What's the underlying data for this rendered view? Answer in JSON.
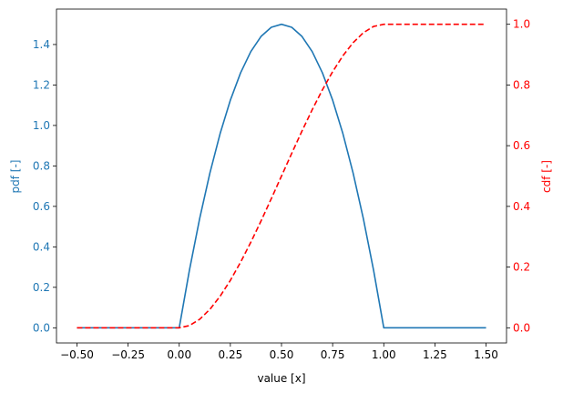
{
  "chart_data": {
    "type": "line",
    "xlabel": "value [x]",
    "ylabel_left": "pdf [-]",
    "ylabel_right": "cdf [-]",
    "xlim": [
      -0.6,
      1.6
    ],
    "ylim_left": [
      -0.075,
      1.575
    ],
    "ylim_right": [
      -0.05,
      1.05
    ],
    "xticks": [
      "−0.50",
      "−0.25",
      "0.00",
      "0.25",
      "0.50",
      "0.75",
      "1.00",
      "1.25",
      "1.50"
    ],
    "xtick_values": [
      -0.5,
      -0.25,
      0.0,
      0.25,
      0.5,
      0.75,
      1.0,
      1.25,
      1.5
    ],
    "yticks_left": [
      "0.0",
      "0.2",
      "0.4",
      "0.6",
      "0.8",
      "1.0",
      "1.2",
      "1.4"
    ],
    "ytick_values_left": [
      0.0,
      0.2,
      0.4,
      0.6,
      0.8,
      1.0,
      1.2,
      1.4
    ],
    "yticks_right": [
      "0.0",
      "0.2",
      "0.4",
      "0.6",
      "0.8",
      "1.0"
    ],
    "ytick_values_right": [
      0.0,
      0.2,
      0.4,
      0.6,
      0.8,
      1.0
    ],
    "colors": {
      "pdf": "#1f77b4",
      "cdf": "#ff0000",
      "axis": "#000000"
    },
    "grid": false,
    "series": [
      {
        "axis": "left",
        "style": "solid",
        "x": [
          -0.5,
          -0.25,
          0.0,
          0.05,
          0.1,
          0.15,
          0.2,
          0.25,
          0.3,
          0.35,
          0.4,
          0.45,
          0.5,
          0.55,
          0.6,
          0.65,
          0.7,
          0.75,
          0.8,
          0.85,
          0.9,
          0.95,
          1.0,
          1.25,
          1.5
        ],
        "y": [
          0.0,
          0.0,
          0.0,
          0.285,
          0.54,
          0.765,
          0.96,
          1.125,
          1.26,
          1.365,
          1.44,
          1.485,
          1.5,
          1.485,
          1.44,
          1.365,
          1.26,
          1.125,
          0.96,
          0.765,
          0.54,
          0.285,
          0.0,
          0.0,
          0.0
        ]
      },
      {
        "axis": "right",
        "style": "dashed",
        "x": [
          -0.5,
          -0.25,
          0.0,
          0.05,
          0.1,
          0.15,
          0.2,
          0.25,
          0.3,
          0.35,
          0.4,
          0.45,
          0.5,
          0.55,
          0.6,
          0.65,
          0.7,
          0.75,
          0.8,
          0.85,
          0.9,
          0.95,
          1.0,
          1.25,
          1.5
        ],
        "y": [
          0.0,
          0.0,
          0.0,
          0.0073,
          0.028,
          0.0608,
          0.104,
          0.1563,
          0.216,
          0.2818,
          0.352,
          0.4253,
          0.5,
          0.5748,
          0.648,
          0.7183,
          0.784,
          0.8438,
          0.896,
          0.9393,
          0.972,
          0.9928,
          1.0,
          1.0,
          1.0
        ]
      }
    ]
  }
}
